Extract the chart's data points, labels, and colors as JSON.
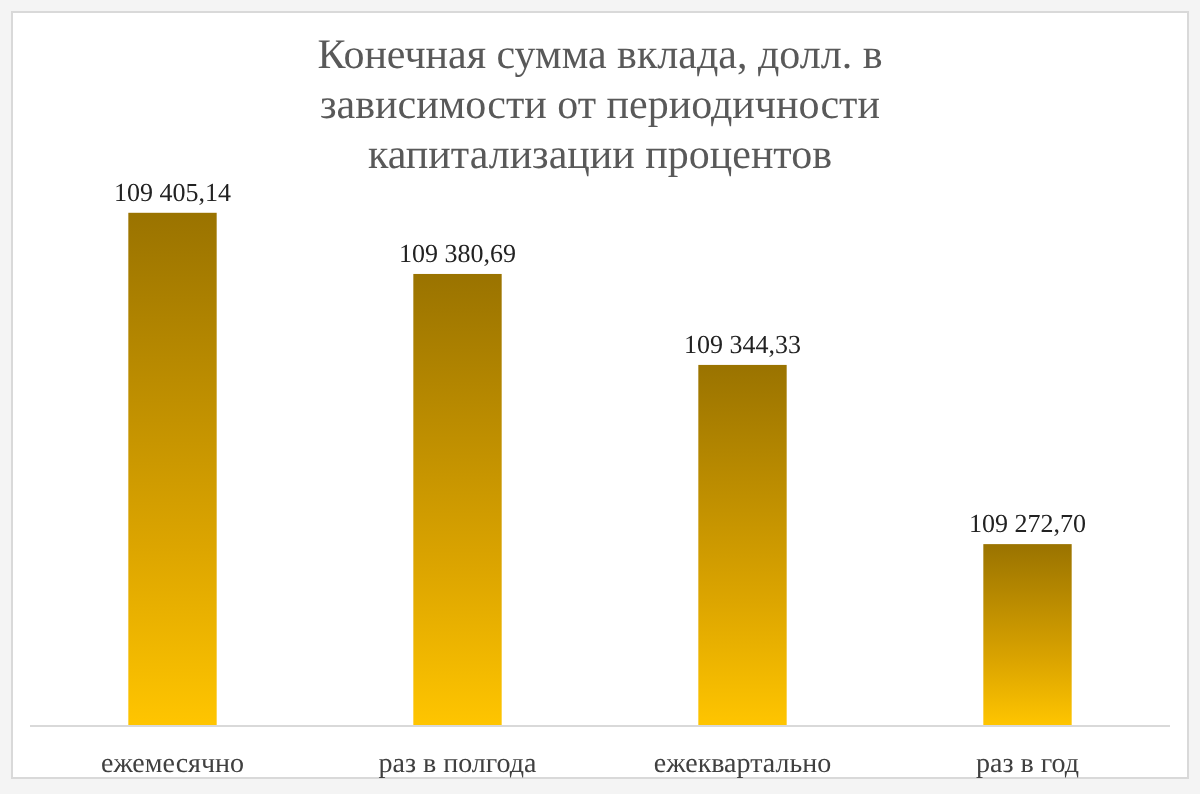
{
  "chart_data": {
    "type": "bar",
    "title": "Конечная сумма вклада, долл. в зависимости от периодичности капитализации процентов",
    "categories": [
      "ежемесячно",
      "раз в полгода",
      "ежеквартально",
      "раз в год"
    ],
    "values": [
      109405.14,
      109380.69,
      109344.33,
      109272.7
    ],
    "value_labels": [
      "109 405,14",
      "109 380,69",
      "109 344,33",
      "109 272,70"
    ],
    "color": "#bf8f00",
    "ylim": [
      109200,
      109485
    ],
    "tick_labels": "x"
  }
}
